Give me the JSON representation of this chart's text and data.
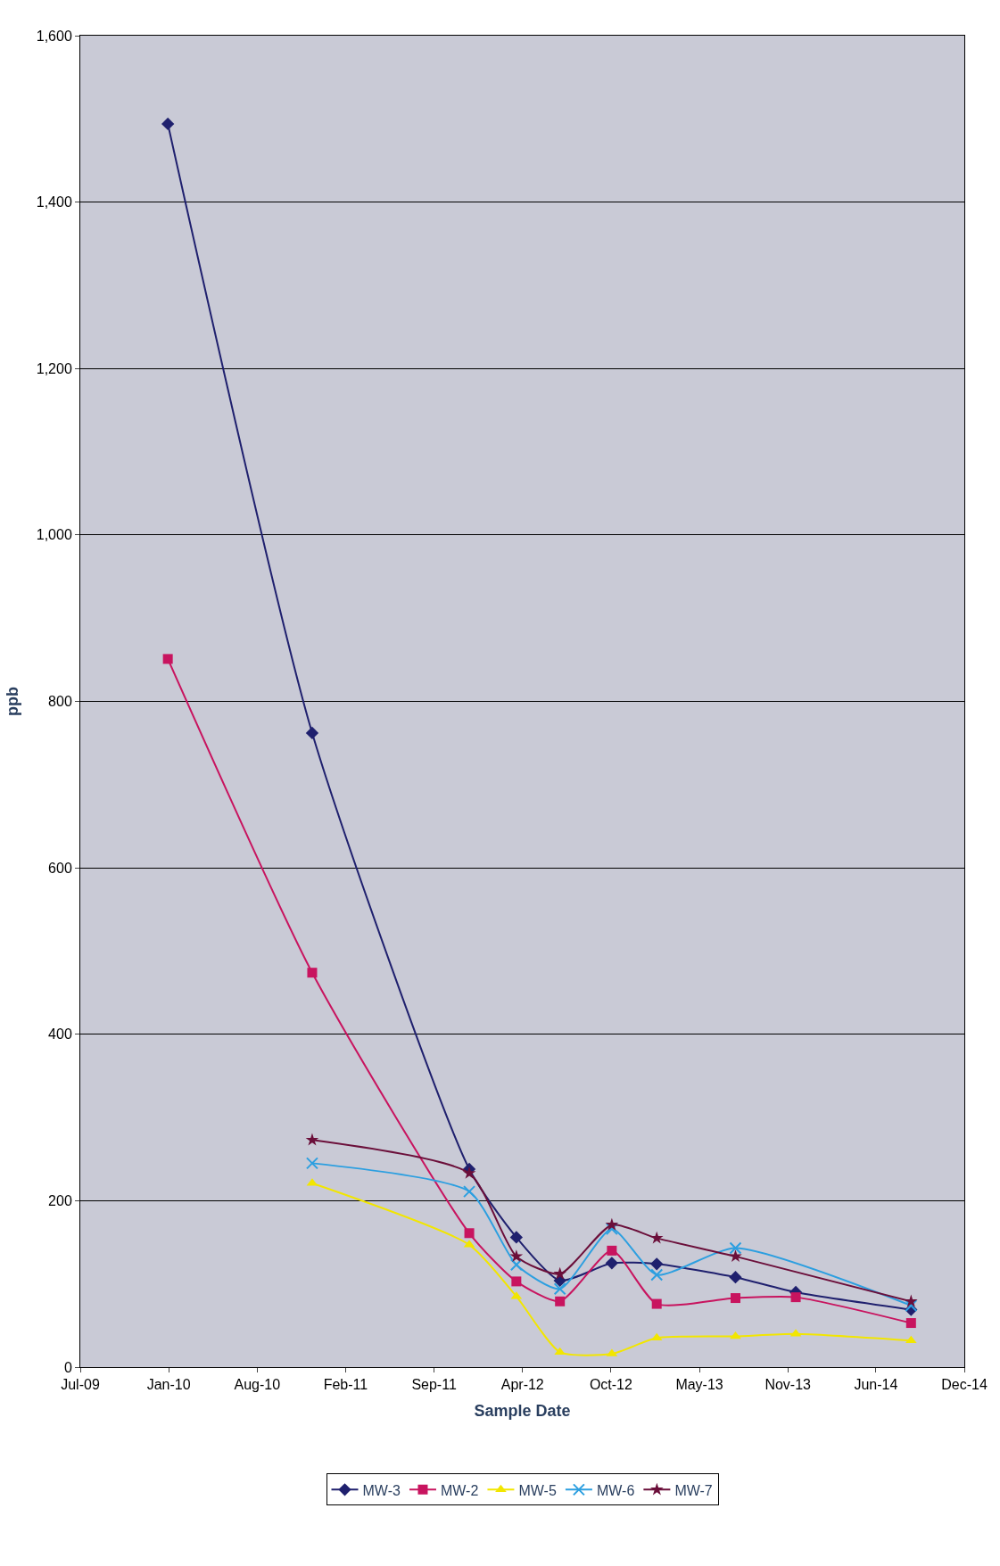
{
  "chart_data": {
    "type": "line",
    "xlabel": "Sample Date",
    "ylabel": "ppb",
    "x": [
      "2010-01-16",
      "2010-12-10",
      "2011-12-02",
      "2012-03-18",
      "2012-06-25",
      "2012-10-21",
      "2013-01-31",
      "2013-07-29",
      "2013-12-13",
      "2014-09-01"
    ],
    "series": [
      {
        "name": "MW-3",
        "color": "#1f206e",
        "marker": "diamond",
        "values": [
          1494,
          762,
          238,
          156,
          104,
          125,
          124,
          108,
          90,
          69
        ]
      },
      {
        "name": "MW-2",
        "color": "#c8145f",
        "marker": "square",
        "values": [
          851,
          474,
          161,
          103,
          79,
          140,
          76,
          83,
          84,
          53
        ]
      },
      {
        "name": "MW-5",
        "color": "#f2e600",
        "marker": "triangle",
        "values": [
          null,
          221,
          147,
          85,
          18,
          16,
          35,
          37,
          40,
          32
        ]
      },
      {
        "name": "MW-6",
        "color": "#2c9fe0",
        "marker": "cross",
        "values": [
          null,
          245,
          211,
          123,
          94,
          166,
          111,
          143,
          null,
          74
        ]
      },
      {
        "name": "MW-7",
        "color": "#6b0f3a",
        "marker": "star",
        "values": [
          null,
          273,
          233,
          133,
          112,
          171,
          155,
          133,
          null,
          79
        ]
      }
    ],
    "xlim": [
      "2009-07-01",
      "2014-12-31"
    ],
    "xticks": [
      {
        "value": "2009-07-01",
        "label": "Jul-09"
      },
      {
        "value": "2010-01-18",
        "label": "Jan-10"
      },
      {
        "value": "2010-08-07",
        "label": "Aug-10"
      },
      {
        "value": "2011-02-24",
        "label": "Feb-11"
      },
      {
        "value": "2011-09-13",
        "label": "Sep-11"
      },
      {
        "value": "2012-04-01",
        "label": "Apr-12"
      },
      {
        "value": "2012-10-19",
        "label": "Oct-12"
      },
      {
        "value": "2013-05-08",
        "label": "May-13"
      },
      {
        "value": "2013-11-25",
        "label": "Nov-13"
      },
      {
        "value": "2014-06-13",
        "label": "Jun-14"
      },
      {
        "value": "2014-12-31",
        "label": "Dec-14"
      }
    ],
    "ylim": [
      0,
      1600
    ],
    "yticks": [
      0,
      200,
      400,
      600,
      800,
      {
        "value": 1000,
        "label": "1,000"
      },
      {
        "value": 1200,
        "label": "1,200"
      },
      {
        "value": 1400,
        "label": "1,400"
      },
      {
        "value": 1600,
        "label": "1,600"
      }
    ],
    "grid": "y",
    "legend": "bottom",
    "line_style": "solid"
  }
}
